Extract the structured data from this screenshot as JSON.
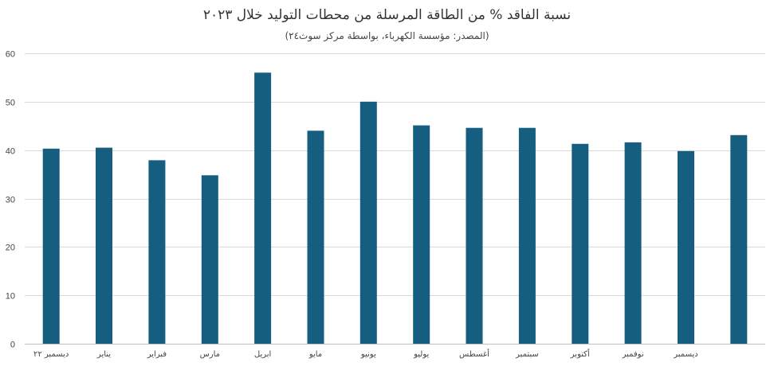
{
  "chart_data": {
    "type": "bar",
    "title": "نسبة الفاقد  % من الطاقة المرسلة من محطات التوليد خلال ٢٠٢٣",
    "subtitle": "(المصدر: مؤسسة الكهرباء، بواسطة مركز سوث٢٤)",
    "categories": [
      "ديسمبر ٢٢",
      "يناير",
      "فبراير",
      "مارس",
      "ابريل",
      "مايو",
      "يونيو",
      "يوليو",
      "أغسطس",
      "سبتمبر",
      "أكتوبر",
      "نوفمبر",
      "ديسمبر",
      ""
    ],
    "values": [
      40.3,
      40.5,
      37.9,
      34.8,
      56.0,
      44.0,
      50.0,
      45.1,
      44.6,
      44.6,
      41.3,
      41.6,
      39.8,
      43.1
    ],
    "ylim": [
      0,
      60
    ],
    "yticks": [
      0,
      10,
      20,
      30,
      40,
      50,
      60
    ],
    "xlabel": "",
    "ylabel": "",
    "grid": true,
    "legend": "none",
    "bar_color": "#165E80",
    "grid_color": "#D9D9D9",
    "axis_color": "#BFBFBF"
  }
}
